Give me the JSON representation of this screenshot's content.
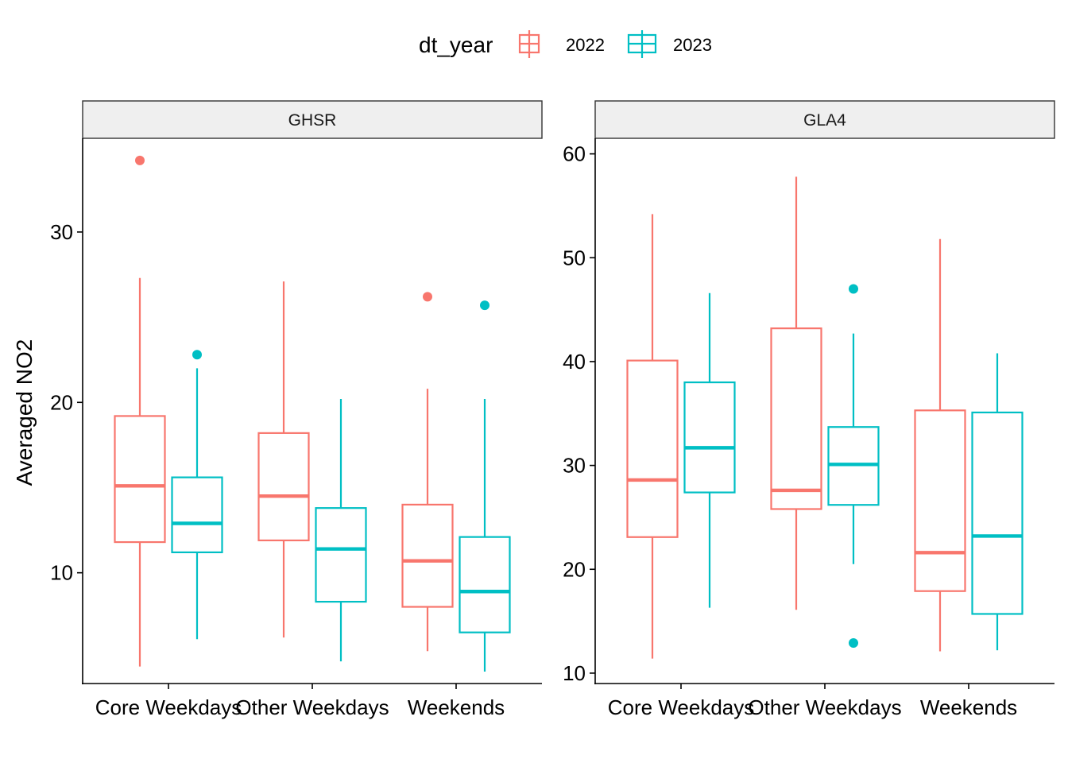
{
  "legend": {
    "title": "dt_year",
    "entries": [
      {
        "label": "2022",
        "color": "#F8766D"
      },
      {
        "label": "2023",
        "color": "#00BFC4"
      }
    ]
  },
  "y_axis_title": "Averaged NO2",
  "chart_data": {
    "type": "boxplot",
    "ylabel": "Averaged NO2",
    "xlabel": "",
    "grid": false,
    "legend_position": "top",
    "categories": [
      "Core Weekdays",
      "Other Weekdays",
      "Weekends"
    ],
    "panels": [
      {
        "name": "GHSR",
        "ylim": [
          3.5,
          35.5
        ],
        "yticks": [
          10,
          20,
          30
        ],
        "series": [
          {
            "name": "2022",
            "color": "#F8766D",
            "boxes": [
              {
                "category": "Core Weekdays",
                "lower_whisker": 4.5,
                "q1": 11.8,
                "median": 15.1,
                "q3": 19.2,
                "upper_whisker": 27.3,
                "outliers": [
                  34.2
                ]
              },
              {
                "category": "Other Weekdays",
                "lower_whisker": 6.2,
                "q1": 11.9,
                "median": 14.5,
                "q3": 18.2,
                "upper_whisker": 27.1,
                "outliers": []
              },
              {
                "category": "Weekends",
                "lower_whisker": 5.4,
                "q1": 8.0,
                "median": 10.7,
                "q3": 14.0,
                "upper_whisker": 20.8,
                "outliers": [
                  26.2
                ]
              }
            ]
          },
          {
            "name": "2023",
            "color": "#00BFC4",
            "boxes": [
              {
                "category": "Core Weekdays",
                "lower_whisker": 6.1,
                "q1": 11.2,
                "median": 12.9,
                "q3": 15.6,
                "upper_whisker": 22.0,
                "outliers": [
                  22.8
                ]
              },
              {
                "category": "Other Weekdays",
                "lower_whisker": 4.8,
                "q1": 8.3,
                "median": 11.4,
                "q3": 13.8,
                "upper_whisker": 20.2,
                "outliers": []
              },
              {
                "category": "Weekends",
                "lower_whisker": 4.2,
                "q1": 6.5,
                "median": 8.9,
                "q3": 12.1,
                "upper_whisker": 20.2,
                "outliers": [
                  25.7
                ]
              }
            ]
          }
        ]
      },
      {
        "name": "GLA4",
        "ylim": [
          9.0,
          61.5
        ],
        "yticks": [
          10,
          20,
          30,
          40,
          50,
          60
        ],
        "series": [
          {
            "name": "2022",
            "color": "#F8766D",
            "boxes": [
              {
                "category": "Core Weekdays",
                "lower_whisker": 11.4,
                "q1": 23.1,
                "median": 28.6,
                "q3": 40.1,
                "upper_whisker": 54.2,
                "outliers": []
              },
              {
                "category": "Other Weekdays",
                "lower_whisker": 16.1,
                "q1": 25.8,
                "median": 27.6,
                "q3": 43.2,
                "upper_whisker": 57.8,
                "outliers": []
              },
              {
                "category": "Weekends",
                "lower_whisker": 12.1,
                "q1": 17.9,
                "median": 21.6,
                "q3": 35.3,
                "upper_whisker": 51.8,
                "outliers": []
              }
            ]
          },
          {
            "name": "2023",
            "color": "#00BFC4",
            "boxes": [
              {
                "category": "Core Weekdays",
                "lower_whisker": 16.3,
                "q1": 27.4,
                "median": 31.7,
                "q3": 38.0,
                "upper_whisker": 46.6,
                "outliers": []
              },
              {
                "category": "Other Weekdays",
                "lower_whisker": 20.5,
                "q1": 26.2,
                "median": 30.1,
                "q3": 33.7,
                "upper_whisker": 42.7,
                "outliers": [
                  47.0,
                  12.9
                ]
              },
              {
                "category": "Weekends",
                "lower_whisker": 12.2,
                "q1": 15.7,
                "median": 23.2,
                "q3": 35.1,
                "upper_whisker": 40.8,
                "outliers": []
              }
            ]
          }
        ]
      }
    ]
  }
}
